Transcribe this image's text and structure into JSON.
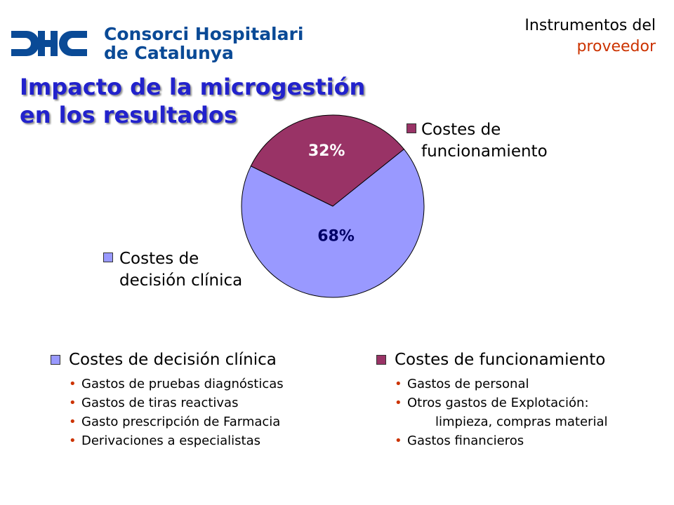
{
  "logo": {
    "mark": "CHC",
    "line1": "Consorci Hospitalari",
    "line2": "de Catalunya",
    "color": "#0a4a96"
  },
  "section_label": {
    "line1": "Instrumentos del",
    "line2": "proveedor"
  },
  "title": {
    "line1": "Impacto de la microgestión",
    "line2": "en los resultados"
  },
  "chart_data": {
    "type": "pie",
    "slices": [
      {
        "name": "Costes de funcionamiento",
        "value": 32,
        "label": "32%",
        "color": "#993366"
      },
      {
        "name": "Costes de decisión clínica",
        "value": 68,
        "label": "68%",
        "color": "#9999ff"
      }
    ]
  },
  "callouts": {
    "funcionamiento": {
      "line1": "Costes de",
      "line2": "funcionamiento"
    },
    "decision": {
      "line1": "Costes de",
      "line2": "decisión clínica"
    }
  },
  "lists": {
    "decision": {
      "heading": "Costes de decisión clínica",
      "items": [
        "Gastos de pruebas diagnósticas",
        "Gastos de tiras reactivas",
        "Gasto prescripción de Farmacia",
        "Derivaciones a especialistas"
      ]
    },
    "funcionamiento": {
      "heading": "Costes de funcionamiento",
      "items": [
        "Gastos de personal",
        "Otros gastos de Explotación:",
        "limpieza, compras material",
        "Gastos financieros"
      ]
    }
  },
  "bullet": "•"
}
